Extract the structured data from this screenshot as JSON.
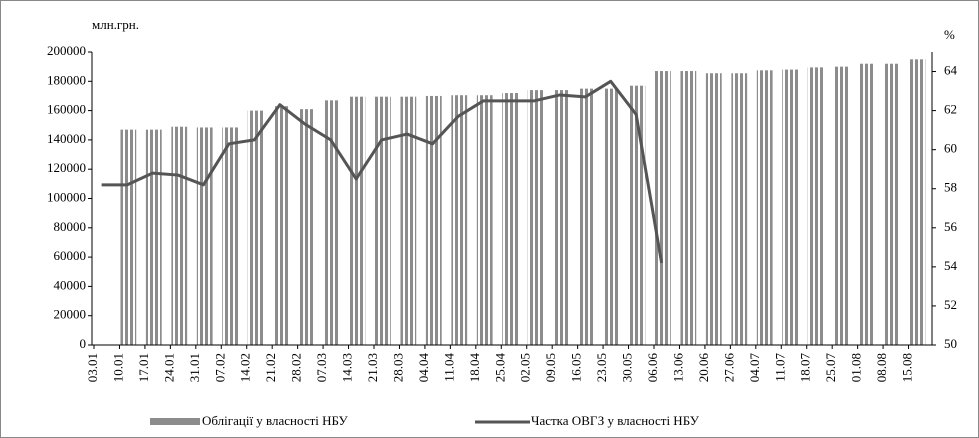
{
  "chart_data": {
    "type": "bar",
    "y_label": "млн.грн.",
    "y2_label": "%",
    "categories": [
      "03.01",
      "10.01",
      "17.01",
      "24.01",
      "31.01",
      "07.02",
      "14.02",
      "21.02",
      "28.02",
      "07.03",
      "14.03",
      "21.03",
      "28.03",
      "04.04",
      "11.04",
      "18.04",
      "25.04",
      "02.05",
      "09.05",
      "16.05",
      "23.05",
      "30.05",
      "06.06",
      "13.06",
      "20.06",
      "27.06",
      "04.07",
      "11.07",
      "18.07",
      "25.07",
      "01.08",
      "08.08",
      "15.08"
    ],
    "series": [
      {
        "name": "Облігації у власності НБУ",
        "type": "bar",
        "color": "#8c8c8c",
        "values": [
          null,
          147000,
          147000,
          149000,
          148500,
          148500,
          160000,
          163000,
          161000,
          167000,
          169500,
          169500,
          169500,
          170000,
          170500,
          170500,
          172000,
          174000,
          174000,
          175000,
          175000,
          177000,
          187000,
          187000,
          185500,
          185500,
          187500,
          188000,
          189500,
          190000,
          192000,
          192000,
          195000
        ]
      },
      {
        "name": "Частка ОВГЗ у власності НБУ",
        "type": "line",
        "axis": "y2",
        "color": "#555555",
        "values": [
          58.2,
          58.2,
          58.8,
          58.7,
          58.2,
          60.3,
          60.5,
          62.3,
          61.3,
          60.5,
          58.5,
          60.5,
          60.8,
          60.3,
          61.7,
          62.5,
          62.5,
          62.5,
          62.8,
          62.7,
          63.5,
          61.8,
          54.2,
          null,
          null,
          null,
          null,
          null,
          null,
          null,
          null,
          null,
          null
        ]
      }
    ],
    "ylim": [
      0,
      200000
    ],
    "yticks": [
      0,
      20000,
      40000,
      60000,
      80000,
      100000,
      120000,
      140000,
      160000,
      180000,
      200000
    ],
    "y2lim": [
      50,
      65
    ],
    "y2ticks": [
      50,
      52,
      54,
      56,
      58,
      60,
      62,
      64
    ]
  }
}
